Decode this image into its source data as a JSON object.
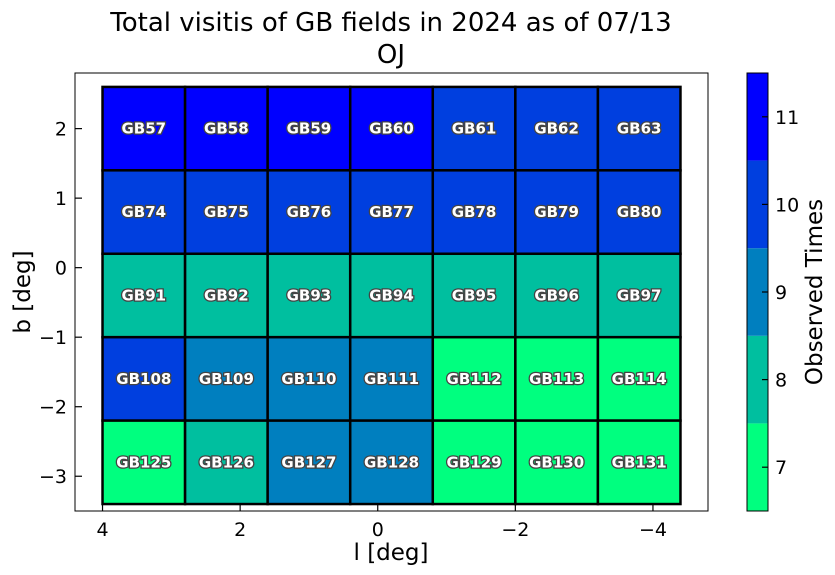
{
  "chart_data": {
    "type": "heatmap",
    "title": "Total visitis of GB fields in 2024 as of 07/13",
    "subtitle": "OJ",
    "xlabel": "l [deg]",
    "ylabel": "b [deg]",
    "xlim": [
      4.4,
      -4.8
    ],
    "ylim": [
      -3.5,
      2.8
    ],
    "x_ticks": [
      4,
      2,
      0,
      -2,
      -4
    ],
    "x_tick_labels": [
      "4",
      "2",
      "0",
      "−2",
      "−4"
    ],
    "y_ticks": [
      2,
      1,
      0,
      -1,
      -2,
      -3
    ],
    "y_tick_labels": [
      "2",
      "1",
      "0",
      "−1",
      "−2",
      "−3"
    ],
    "fields": [
      {
        "name": "GB57",
        "l": 3.4,
        "b": 2.0,
        "value": 11
      },
      {
        "name": "GB58",
        "l": 2.2,
        "b": 2.0,
        "value": 11
      },
      {
        "name": "GB59",
        "l": 1.0,
        "b": 2.0,
        "value": 11
      },
      {
        "name": "GB60",
        "l": -0.2,
        "b": 2.0,
        "value": 11
      },
      {
        "name": "GB61",
        "l": -1.4,
        "b": 2.0,
        "value": 10
      },
      {
        "name": "GB62",
        "l": -2.6,
        "b": 2.0,
        "value": 10
      },
      {
        "name": "GB63",
        "l": -3.8,
        "b": 2.0,
        "value": 10
      },
      {
        "name": "GB74",
        "l": 3.4,
        "b": 0.8,
        "value": 10
      },
      {
        "name": "GB75",
        "l": 2.2,
        "b": 0.8,
        "value": 10
      },
      {
        "name": "GB76",
        "l": 1.0,
        "b": 0.8,
        "value": 10
      },
      {
        "name": "GB77",
        "l": -0.2,
        "b": 0.8,
        "value": 10
      },
      {
        "name": "GB78",
        "l": -1.4,
        "b": 0.8,
        "value": 10
      },
      {
        "name": "GB79",
        "l": -2.6,
        "b": 0.8,
        "value": 10
      },
      {
        "name": "GB80",
        "l": -3.8,
        "b": 0.8,
        "value": 10
      },
      {
        "name": "GB91",
        "l": 3.4,
        "b": -0.4,
        "value": 8
      },
      {
        "name": "GB92",
        "l": 2.2,
        "b": -0.4,
        "value": 8
      },
      {
        "name": "GB93",
        "l": 1.0,
        "b": -0.4,
        "value": 8
      },
      {
        "name": "GB94",
        "l": -0.2,
        "b": -0.4,
        "value": 8
      },
      {
        "name": "GB95",
        "l": -1.4,
        "b": -0.4,
        "value": 8
      },
      {
        "name": "GB96",
        "l": -2.6,
        "b": -0.4,
        "value": 8
      },
      {
        "name": "GB97",
        "l": -3.8,
        "b": -0.4,
        "value": 8
      },
      {
        "name": "GB108",
        "l": 3.4,
        "b": -1.6,
        "value": 10
      },
      {
        "name": "GB109",
        "l": 2.2,
        "b": -1.6,
        "value": 9
      },
      {
        "name": "GB110",
        "l": 1.0,
        "b": -1.6,
        "value": 9
      },
      {
        "name": "GB111",
        "l": -0.2,
        "b": -1.6,
        "value": 9
      },
      {
        "name": "GB112",
        "l": -1.4,
        "b": -1.6,
        "value": 7
      },
      {
        "name": "GB113",
        "l": -2.6,
        "b": -1.6,
        "value": 7
      },
      {
        "name": "GB114",
        "l": -3.8,
        "b": -1.6,
        "value": 7
      },
      {
        "name": "GB125",
        "l": 3.4,
        "b": -2.8,
        "value": 7
      },
      {
        "name": "GB126",
        "l": 2.2,
        "b": -2.8,
        "value": 8
      },
      {
        "name": "GB127",
        "l": 1.0,
        "b": -2.8,
        "value": 9
      },
      {
        "name": "GB128",
        "l": -0.2,
        "b": -2.8,
        "value": 9
      },
      {
        "name": "GB129",
        "l": -1.4,
        "b": -2.8,
        "value": 7
      },
      {
        "name": "GB130",
        "l": -2.6,
        "b": -2.8,
        "value": 7
      },
      {
        "name": "GB131",
        "l": -3.8,
        "b": -2.8,
        "value": 7
      }
    ],
    "field_size_deg": [
      1.2,
      1.2
    ],
    "colorbar": {
      "label": "Observed Times",
      "ticks": [
        7,
        8,
        9,
        10,
        11
      ],
      "range": [
        6.5,
        11.5
      ],
      "levels": [
        {
          "value": 7,
          "color": "#00ff7f"
        },
        {
          "value": 8,
          "color": "#00bf9f"
        },
        {
          "value": 9,
          "color": "#007fbf"
        },
        {
          "value": 10,
          "color": "#003fdf"
        },
        {
          "value": 11,
          "color": "#0000ff"
        }
      ]
    },
    "grid": false
  }
}
